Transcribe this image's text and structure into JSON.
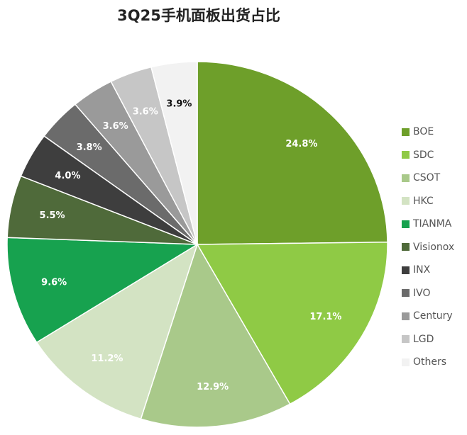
{
  "chart_data": {
    "type": "pie",
    "title": "3Q25手机面板出货占比",
    "categories": [
      "BOE",
      "SDC",
      "CSOT",
      "HKC",
      "TIANMA",
      "Visionox",
      "INX",
      "IVO",
      "Century",
      "LGD",
      "Others"
    ],
    "values": [
      24.8,
      17.1,
      12.9,
      11.2,
      9.6,
      5.5,
      4.0,
      3.8,
      3.6,
      3.6,
      3.9
    ],
    "labels": [
      "24.8%",
      "17.1%",
      "12.9%",
      "11.2%",
      "9.6%",
      "5.5%",
      "4.0%",
      "3.8%",
      "3.6%",
      "3.6%",
      "3.9%"
    ],
    "colors": [
      "#6e9f2a",
      "#8fca45",
      "#a9c98a",
      "#d3e3c3",
      "#17a24f",
      "#4f6a3a",
      "#3e3e3e",
      "#6b6b6b",
      "#9a9a9a",
      "#c6c6c6",
      "#f2f2f2"
    ],
    "label_colors": [
      "#fff",
      "#fff",
      "#fff",
      "#fff",
      "#fff",
      "#fff",
      "#fff",
      "#fff",
      "#fff",
      "#fff",
      "#111"
    ],
    "start": "12 o'clock",
    "direction": "clockwise",
    "legend_position": "right"
  }
}
